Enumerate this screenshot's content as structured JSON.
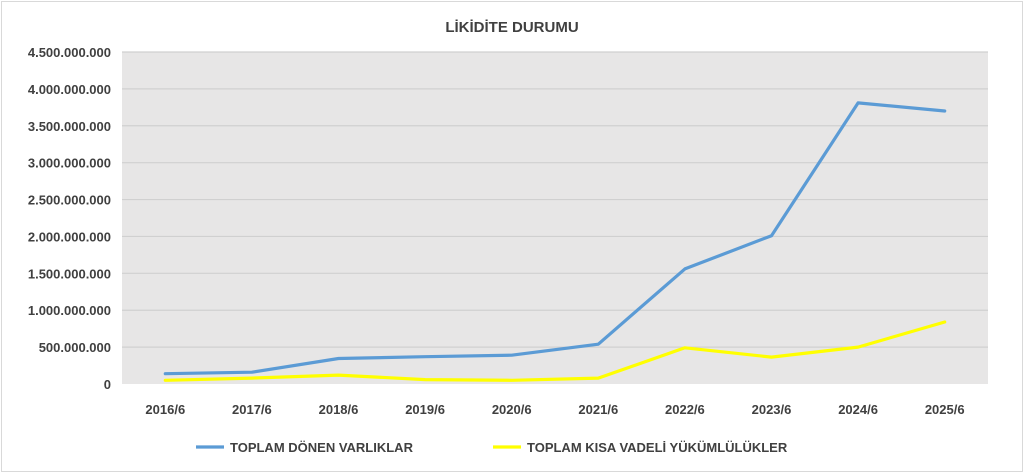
{
  "chart_data": {
    "type": "line",
    "title": "LİKİDİTE DURUMU",
    "categories": [
      "2016/6",
      "2017/6",
      "2018/6",
      "2019/6",
      "2020/6",
      "2021/6",
      "2022/6",
      "2023/6",
      "2024/6",
      "2025/6"
    ],
    "y_ticks": [
      "0",
      "500.000.000",
      "1.000.000.000",
      "1.500.000.000",
      "2.000.000.000",
      "2.500.000.000",
      "3.000.000.000",
      "3.500.000.000",
      "4.000.000.000",
      "4.500.000.000"
    ],
    "ylim": [
      0,
      4500000000
    ],
    "grid": true,
    "legend_position": "bottom",
    "series": [
      {
        "name": "TOPLAM DÖNEN VARLIKLAR",
        "color": "#5b9bd5",
        "values": [
          140000000,
          160000000,
          345000000,
          370000000,
          390000000,
          540000000,
          1560000000,
          2010000000,
          3810000000,
          3700000000
        ]
      },
      {
        "name": "TOPLAM KISA VADELİ YÜKÜMLÜLÜKLER",
        "color": "#ffff00",
        "values": [
          50000000,
          80000000,
          120000000,
          60000000,
          50000000,
          80000000,
          490000000,
          365000000,
          500000000,
          840000000
        ]
      }
    ]
  }
}
